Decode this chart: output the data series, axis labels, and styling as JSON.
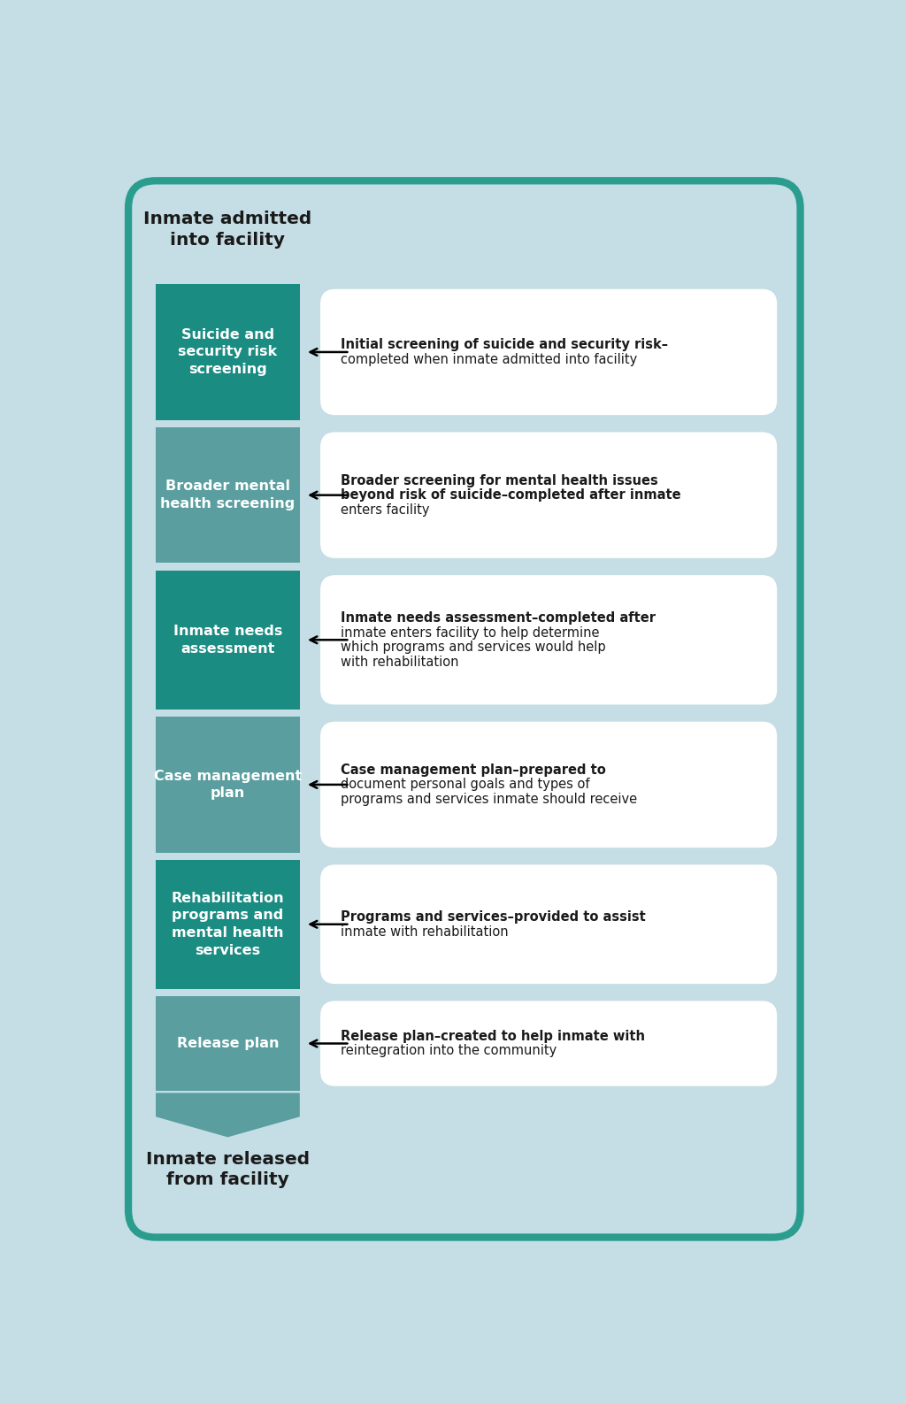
{
  "bg_color": "#c5dde5",
  "border_color": "#2a9d8f",
  "teal_dark": "#1a8c82",
  "teal_medium": "#5a9ea0",
  "white": "#ffffff",
  "black": "#1a1a1a",
  "top_label": "Inmate admitted\ninto facility",
  "bottom_label": "Inmate released\nfrom facility",
  "steps": [
    {
      "left_text": "Suicide and\nsecurity risk\nscreening",
      "right_lines": [
        {
          "bold": true,
          "text": "Initial screening of suicide and security risk–"
        },
        {
          "bold": false,
          "text": "completed when inmate admitted into facility"
        }
      ],
      "color": "#1a8c82"
    },
    {
      "left_text": "Broader mental\nhealth screening",
      "right_lines": [
        {
          "bold": true,
          "text": "Broader screening for mental health issues"
        },
        {
          "bold": true,
          "text": "beyond risk of suicide–completed after inmate"
        },
        {
          "bold": false,
          "text": "enters facility"
        }
      ],
      "color": "#5a9ea0"
    },
    {
      "left_text": "Inmate needs\nassessment",
      "right_lines": [
        {
          "bold": true,
          "text": "Inmate needs assessment–completed after"
        },
        {
          "bold": false,
          "text": "inmate enters facility to help determine"
        },
        {
          "bold": false,
          "text": "which programs and services would help"
        },
        {
          "bold": false,
          "text": "with rehabilitation"
        }
      ],
      "color": "#1a8c82"
    },
    {
      "left_text": "Case management\nplan",
      "right_lines": [
        {
          "bold": true,
          "text": "Case management plan–prepared to"
        },
        {
          "bold": false,
          "text": "document personal goals and types of"
        },
        {
          "bold": false,
          "text": "programs and services inmate should receive"
        }
      ],
      "color": "#5a9ea0"
    },
    {
      "left_text": "Rehabilitation\nprograms and\nmental health\nservices",
      "right_lines": [
        {
          "bold": true,
          "text": "Programs and services–provided to assist"
        },
        {
          "bold": false,
          "text": "inmate with rehabilitation"
        }
      ],
      "color": "#1a8c82"
    },
    {
      "left_text": "Release plan",
      "right_lines": [
        {
          "bold": true,
          "text": "Release plan–created to help inmate with"
        },
        {
          "bold": false,
          "text": "reintegration into the community"
        }
      ],
      "color": "#5a9ea0"
    }
  ]
}
